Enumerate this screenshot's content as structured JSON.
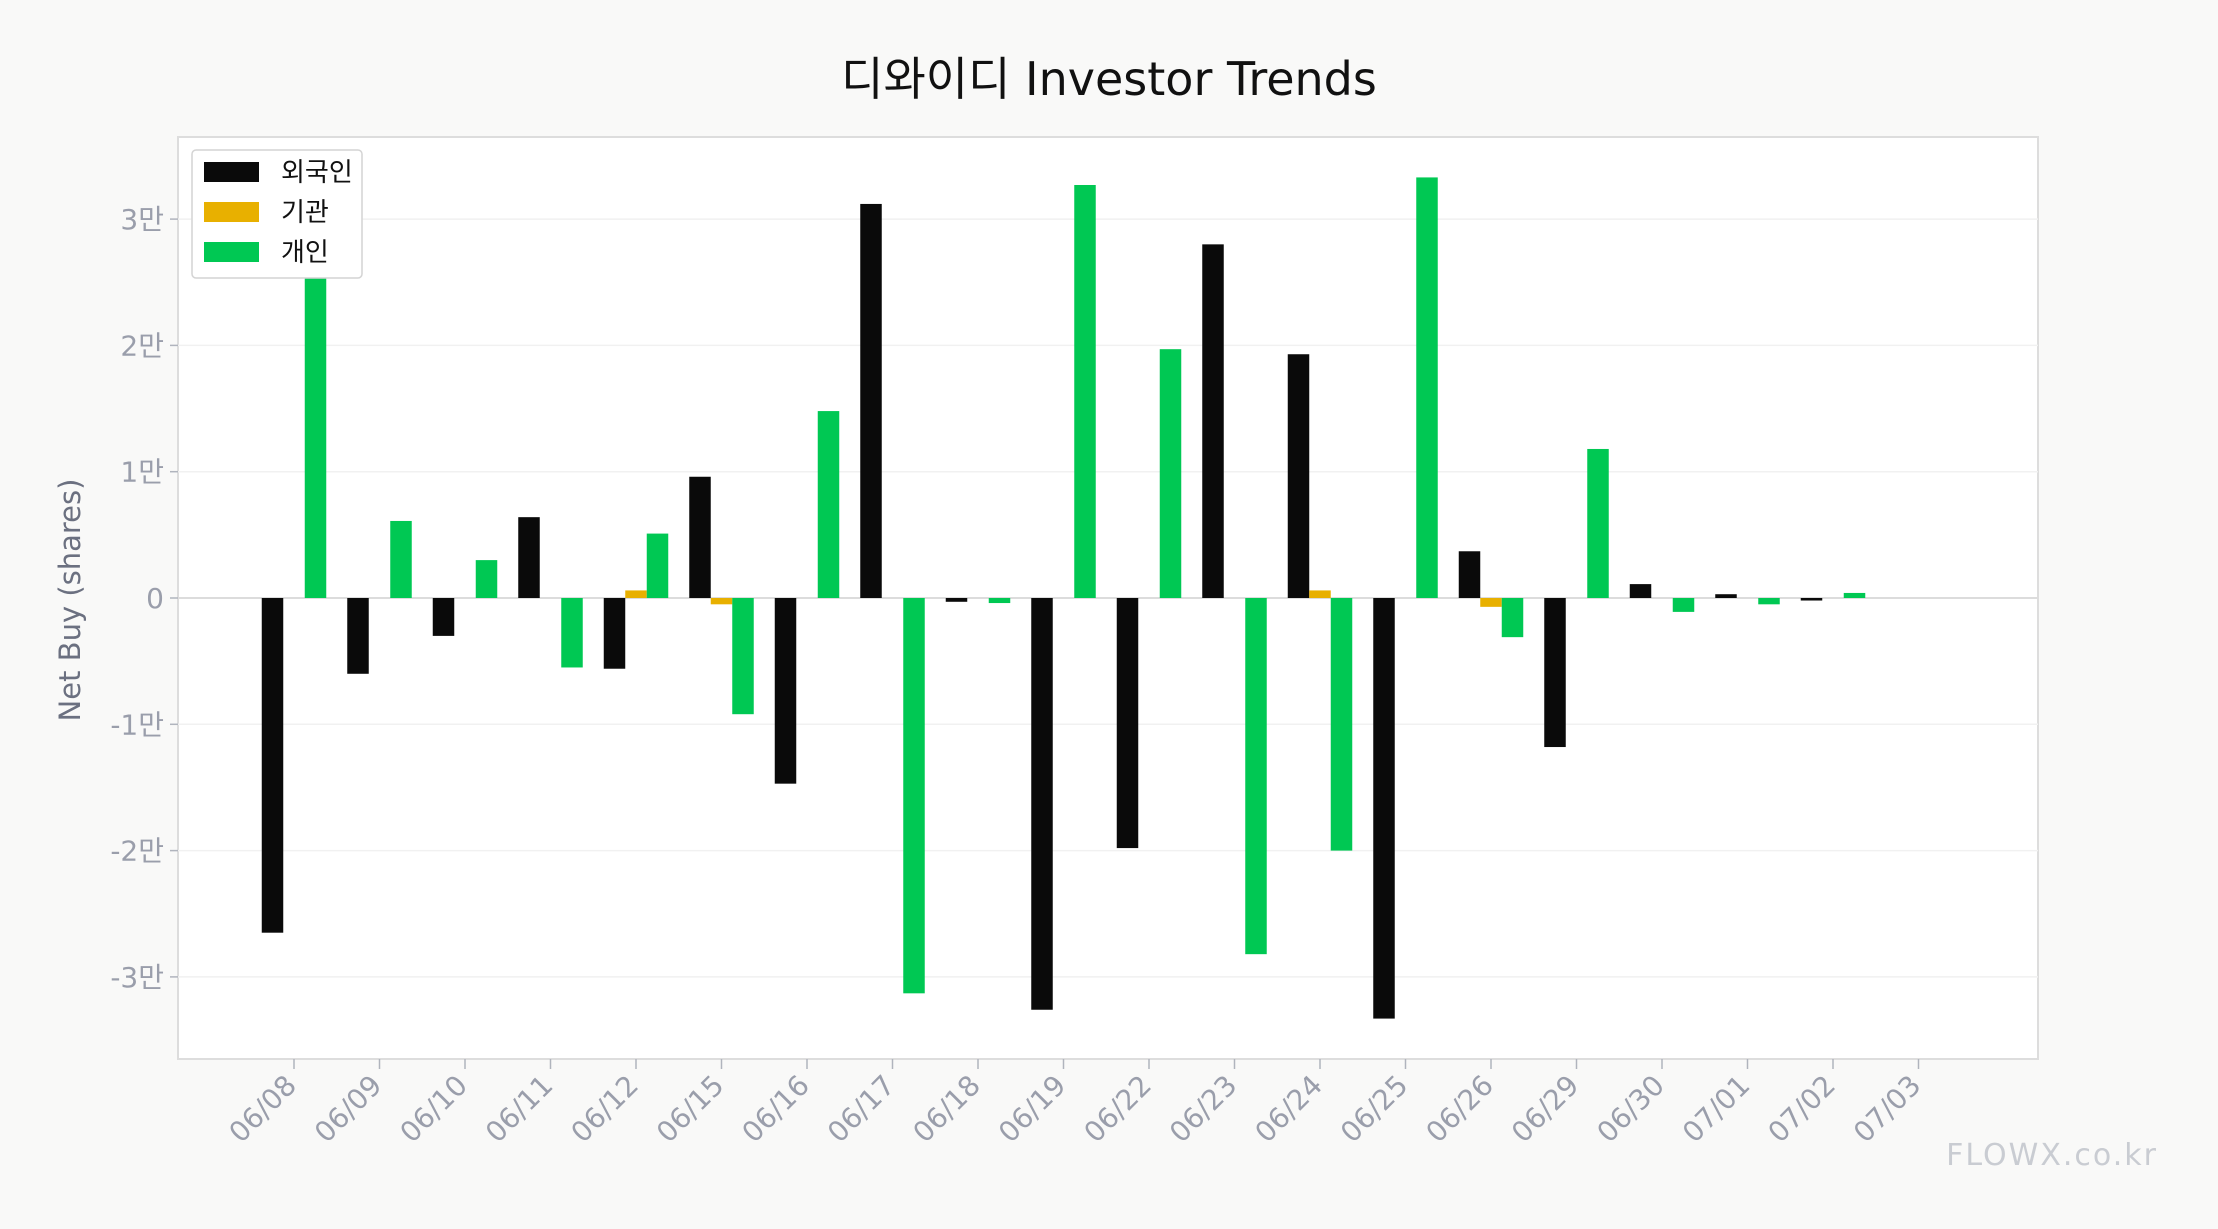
{
  "chart_data": {
    "type": "bar",
    "title": "디와이디 Investor Trends",
    "ylabel": "Net Buy (shares)",
    "xlabel": "",
    "categories": [
      "06/08",
      "06/09",
      "06/10",
      "06/11",
      "06/12",
      "06/15",
      "06/16",
      "06/17",
      "06/18",
      "06/19",
      "06/22",
      "06/23",
      "06/24",
      "06/25",
      "06/26",
      "06/29",
      "06/30",
      "07/01",
      "07/02",
      "07/03"
    ],
    "series": [
      {
        "name": "외국인",
        "color": "#0a0a0a",
        "values": [
          -26500,
          -6000,
          -3000,
          6400,
          -5600,
          9600,
          -14700,
          31200,
          -300,
          -32600,
          -19800,
          28000,
          19300,
          -33300,
          3700,
          -11800,
          1100,
          300,
          -200,
          0
        ]
      },
      {
        "name": "기관",
        "color": "#e8b000",
        "values": [
          0,
          0,
          0,
          0,
          600,
          -500,
          0,
          0,
          0,
          0,
          0,
          0,
          600,
          0,
          -700,
          0,
          0,
          0,
          0,
          0
        ]
      },
      {
        "name": "개인",
        "color": "#00c853",
        "values": [
          26500,
          6100,
          3000,
          -5500,
          5100,
          -9200,
          14800,
          -31300,
          -400,
          32700,
          19700,
          -28200,
          -20000,
          33300,
          -3100,
          11800,
          -1100,
          -500,
          400,
          0
        ]
      }
    ],
    "yticks": [
      -30000,
      -20000,
      -10000,
      0,
      10000,
      20000,
      30000
    ],
    "ytick_labels": [
      "-3만",
      "-2만",
      "-1만",
      "0",
      "1만",
      "2만",
      "3만"
    ],
    "ylim": [
      -36500,
      36500
    ],
    "grid": true,
    "legend": "top-left"
  },
  "watermark": "FLOWX.co.kr"
}
